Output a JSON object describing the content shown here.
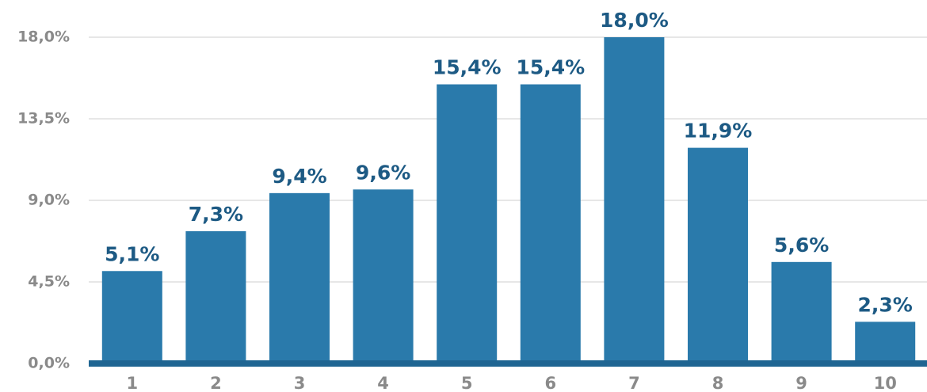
{
  "chart_data": {
    "type": "bar",
    "categories": [
      "1",
      "2",
      "3",
      "4",
      "5",
      "6",
      "7",
      "8",
      "9",
      "10"
    ],
    "values": [
      5.1,
      7.3,
      9.4,
      9.6,
      15.4,
      15.4,
      18.0,
      11.9,
      5.6,
      2.3
    ],
    "value_labels": [
      "5,1%",
      "7,3%",
      "9,4%",
      "9,6%",
      "15,4%",
      "15,4%",
      "18,0%",
      "11,9%",
      "5,6%",
      "2,3%"
    ],
    "color": "#2a7aab",
    "ylim": [
      0,
      18
    ],
    "yticks": [
      {
        "value": 0,
        "label": "0,0%"
      },
      {
        "value": 4.5,
        "label": "4,5%"
      },
      {
        "value": 9,
        "label": "9,0%"
      },
      {
        "value": 13.5,
        "label": "13,5%"
      },
      {
        "value": 18,
        "label": "18,0%"
      }
    ],
    "grid": true
  }
}
